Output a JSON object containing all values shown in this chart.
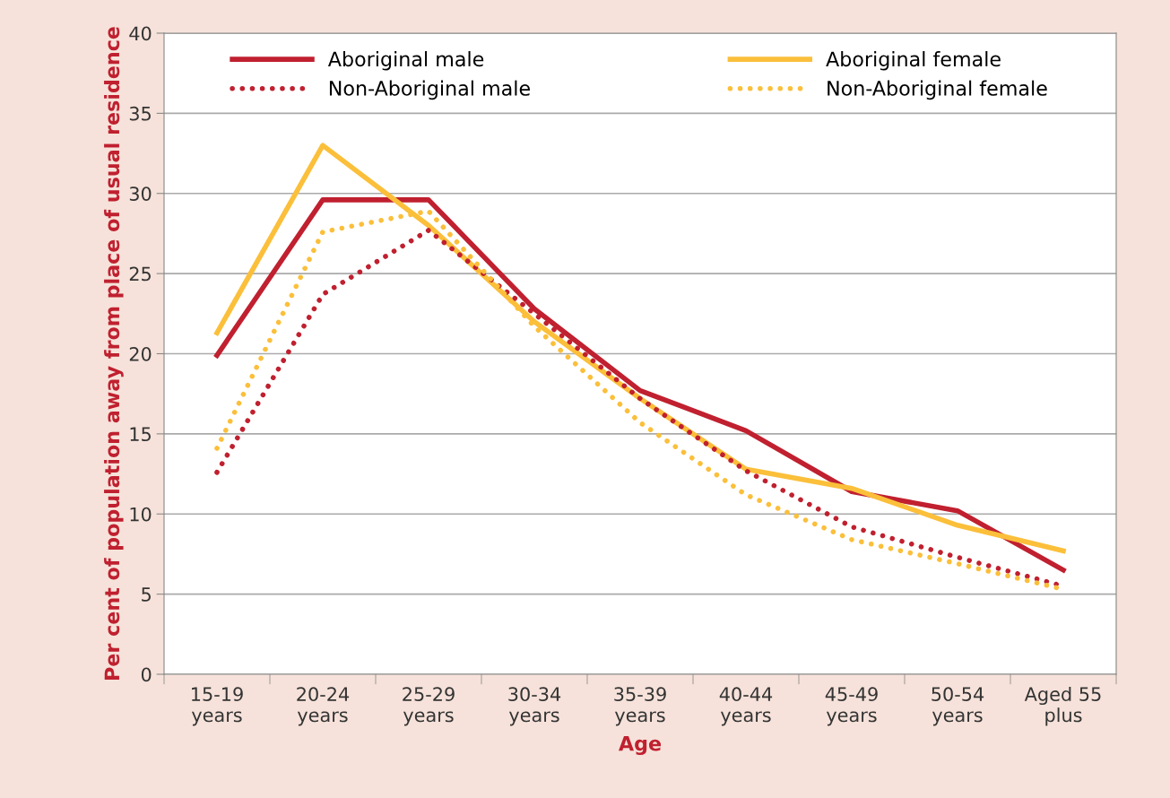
{
  "chart_data": {
    "type": "line",
    "xlabel": "Age",
    "ylabel": "Per cent of population away from place of usual residence",
    "categories": [
      "15-19\nyears",
      "20-24\nyears",
      "25-29\nyears",
      "30-34\nyears",
      "35-39\nyears",
      "40-44\nyears",
      "45-49\nyears",
      "50-54\nyears",
      "Aged 55\nplus"
    ],
    "series": [
      {
        "name": "Aboriginal male",
        "color": "#c0202f",
        "line_style": "solid",
        "values": [
          19.9,
          29.6,
          29.6,
          22.8,
          17.7,
          15.2,
          11.4,
          10.2,
          6.5
        ]
      },
      {
        "name": "Aboriginal female",
        "color": "#fbbf3a",
        "line_style": "solid",
        "values": [
          21.3,
          33.0,
          28.0,
          22.0,
          17.2,
          12.8,
          11.6,
          9.3,
          7.7
        ]
      },
      {
        "name": "Non-Aboriginal male",
        "color": "#c0202f",
        "line_style": "dotted",
        "values": [
          12.6,
          23.7,
          27.7,
          22.5,
          17.2,
          12.7,
          9.2,
          7.3,
          5.5
        ]
      },
      {
        "name": "Non-Aboriginal female",
        "color": "#fbbf3a",
        "line_style": "dotted",
        "values": [
          14.1,
          27.6,
          28.9,
          21.7,
          15.7,
          11.2,
          8.4,
          6.9,
          5.3
        ]
      }
    ],
    "ylim": [
      0,
      40
    ],
    "yticks": [
      0,
      5,
      10,
      15,
      20,
      25,
      30,
      35,
      40
    ],
    "grid": "y",
    "legend": "top"
  }
}
